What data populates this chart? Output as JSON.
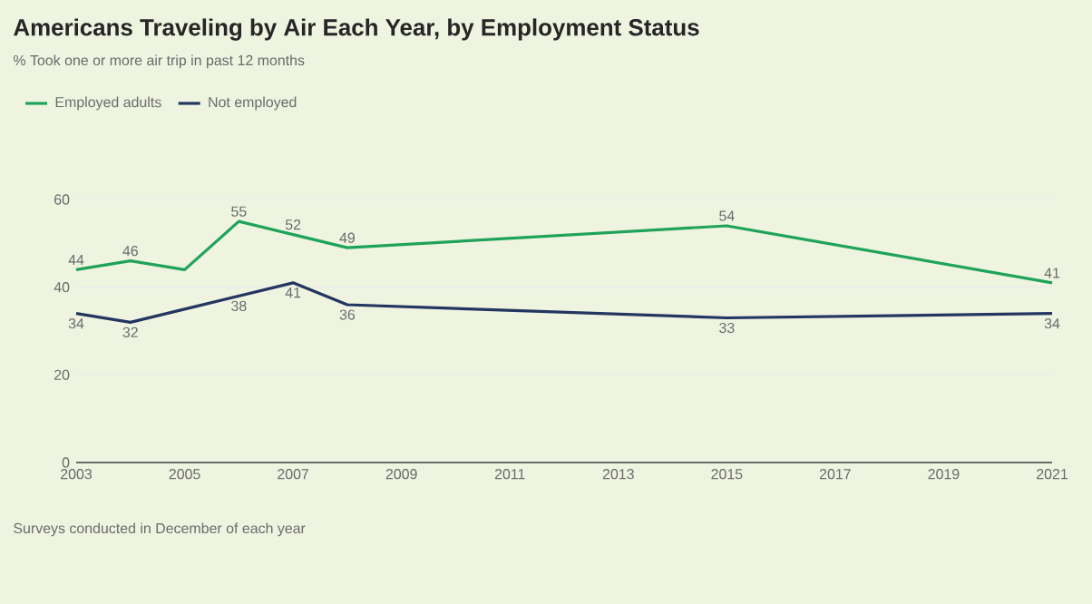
{
  "chart_data": {
    "type": "line",
    "title": "Americans Traveling by Air Each Year, by Employment Status",
    "subtitle": "% Took one or more air trip in past 12 months",
    "x": [
      2003,
      2004,
      2005,
      2006,
      2007,
      2008,
      2015,
      2021
    ],
    "series": [
      {
        "name": "Employed adults",
        "color": "#1fa35a",
        "values": [
          44,
          46,
          44,
          55,
          52,
          49,
          54,
          41
        ],
        "value_labels": [
          "44",
          "46",
          null,
          "55",
          "52",
          "49",
          "54",
          "41"
        ]
      },
      {
        "name": "Not employed",
        "color": "#233560",
        "values": [
          34,
          32,
          35,
          38,
          41,
          36,
          33,
          34
        ],
        "value_labels": [
          "34",
          "32",
          null,
          "38",
          "41",
          "36",
          "33",
          "34"
        ]
      }
    ],
    "xlim": [
      2003,
      2021
    ],
    "xticks": [
      2003,
      2005,
      2007,
      2009,
      2011,
      2013,
      2015,
      2017,
      2019,
      2021
    ],
    "ylim": [
      0,
      60
    ],
    "yticks": [
      0,
      20,
      40,
      60
    ],
    "grid": "y",
    "legend": "top left",
    "marker": "none",
    "line_style": "solid",
    "annotations": [
      "Surveys conducted in December of each year"
    ]
  }
}
